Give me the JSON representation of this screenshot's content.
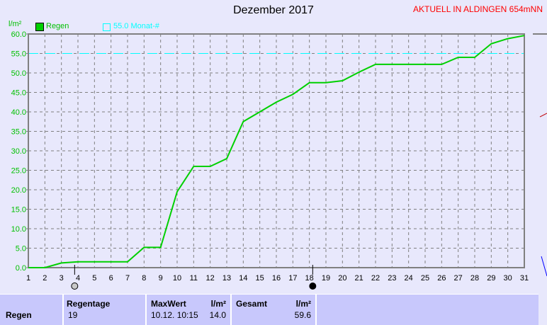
{
  "header": {
    "title": "Dezember 2017",
    "station": "AKTUELL IN ALDINGEN 654mNN"
  },
  "legend": {
    "series": "Regen",
    "reference": "55.0 Monat-#"
  },
  "colors": {
    "series": "#00d000",
    "reference": "#00ffff",
    "axis": "#00c000",
    "station": "#ff0000"
  },
  "moon_phases": [
    {
      "day": 3.8,
      "icon": "full-moon-icon"
    },
    {
      "day": 18.2,
      "icon": "new-moon-icon"
    }
  ],
  "chart_data": {
    "type": "line",
    "title": "Dezember 2017",
    "ylabel": "l/m²",
    "ylim": [
      0,
      60
    ],
    "xlim": [
      1,
      31
    ],
    "grid": true,
    "legend_placement": "top-left",
    "yticks": [
      "0.0",
      "5.0",
      "10.0",
      "15.0",
      "20.0",
      "25.0",
      "30.0",
      "35.0",
      "40.0",
      "45.0",
      "50.0",
      "55.0",
      "60.0"
    ],
    "reference_line": {
      "name": "55.0 Monat-#",
      "value": 55.0
    },
    "series": [
      {
        "name": "Regen",
        "x": [
          1,
          2,
          3,
          4,
          5,
          6,
          7,
          8,
          9,
          10,
          11,
          12,
          13,
          14,
          15,
          16,
          17,
          18,
          19,
          20,
          21,
          22,
          23,
          24,
          25,
          26,
          27,
          28,
          29,
          30,
          31
        ],
        "values": [
          0,
          0,
          1.2,
          1.5,
          1.5,
          1.5,
          1.5,
          5.2,
          5.2,
          19.5,
          26,
          26,
          28,
          37.5,
          40,
          42.5,
          44.5,
          47.5,
          47.5,
          48,
          50.2,
          52.2,
          52.2,
          52.2,
          52.2,
          52.2,
          54,
          54,
          57.5,
          58.8,
          59.6
        ]
      }
    ]
  },
  "table": {
    "row_label": "Regen",
    "regentage_label": "Regentage",
    "regentage": "19",
    "maxwert_label": "MaxWert",
    "unit": "l/m²",
    "max_time": "10.12.  10:15",
    "max_value": "14.0",
    "gesamt_label": "Gesamt",
    "gesamt": "59.6"
  }
}
